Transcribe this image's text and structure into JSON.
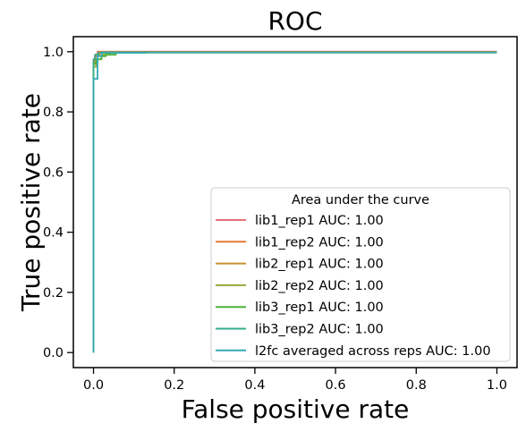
{
  "chart_data": {
    "type": "line",
    "title": "ROC",
    "xlabel": "False positive rate",
    "ylabel": "True positive rate",
    "xlim": [
      -0.05,
      1.05
    ],
    "ylim": [
      -0.05,
      1.05
    ],
    "xticks": [
      0.0,
      0.2,
      0.4,
      0.6,
      0.8,
      1.0
    ],
    "yticks": [
      0.0,
      0.2,
      0.4,
      0.6,
      0.8,
      1.0
    ],
    "xtick_labels": [
      "0.0",
      "0.2",
      "0.4",
      "0.6",
      "0.8",
      "1.0"
    ],
    "ytick_labels": [
      "0.0",
      "0.2",
      "0.4",
      "0.6",
      "0.8",
      "1.0"
    ],
    "grid": false,
    "legend": {
      "title": "Area under the curve",
      "placement": "lower-right"
    },
    "series": [
      {
        "name": "lib1_rep1 AUC: 1.00",
        "color": "#e8707a",
        "x": [
          0,
          0,
          0.003,
          0.003,
          0.01,
          0.01,
          1.0
        ],
        "y": [
          0,
          0.96,
          0.96,
          0.985,
          0.985,
          1.0,
          1.0
        ]
      },
      {
        "name": "lib1_rep2 AUC: 1.00",
        "color": "#e07a34",
        "x": [
          0,
          0,
          0.004,
          0.004,
          0.012,
          0.012,
          1.0
        ],
        "y": [
          0,
          0.97,
          0.97,
          0.99,
          0.99,
          1.0,
          1.0
        ]
      },
      {
        "name": "lib2_rep1 AUC: 1.00",
        "color": "#c7922e",
        "x": [
          0,
          0,
          0.005,
          0.005,
          0.015,
          0.015,
          1.0
        ],
        "y": [
          0,
          0.965,
          0.965,
          0.99,
          0.99,
          0.998,
          0.998
        ]
      },
      {
        "name": "lib2_rep2 AUC: 1.00",
        "color": "#96a834",
        "x": [
          0,
          0,
          0.006,
          0.006,
          0.02,
          0.02,
          0.04,
          0.04,
          1.0
        ],
        "y": [
          0,
          0.95,
          0.95,
          0.975,
          0.975,
          0.99,
          0.99,
          0.998,
          0.998
        ]
      },
      {
        "name": "lib3_rep1 AUC: 1.00",
        "color": "#4db339",
        "x": [
          0,
          0,
          0.008,
          0.008,
          0.02,
          0.02,
          0.03,
          0.03,
          0.055,
          0.055,
          1.0
        ],
        "y": [
          0,
          0.96,
          0.96,
          0.975,
          0.975,
          0.985,
          0.985,
          0.99,
          0.99,
          0.997,
          0.997
        ]
      },
      {
        "name": "lib3_rep2 AUC: 1.00",
        "color": "#34ae8c",
        "x": [
          0,
          0,
          0.004,
          0.004,
          0.012,
          0.012,
          0.13,
          0.13,
          1.0
        ],
        "y": [
          0,
          0.975,
          0.975,
          0.99,
          0.99,
          0.996,
          0.996,
          0.998,
          0.998
        ]
      },
      {
        "name": "l2fc averaged across reps AUC: 1.00",
        "color": "#36a8b4",
        "x": [
          0,
          0,
          0.01,
          0.01,
          0.02,
          0.02,
          1.0
        ],
        "y": [
          0,
          0.91,
          0.91,
          0.985,
          0.985,
          0.998,
          0.998
        ]
      }
    ]
  }
}
